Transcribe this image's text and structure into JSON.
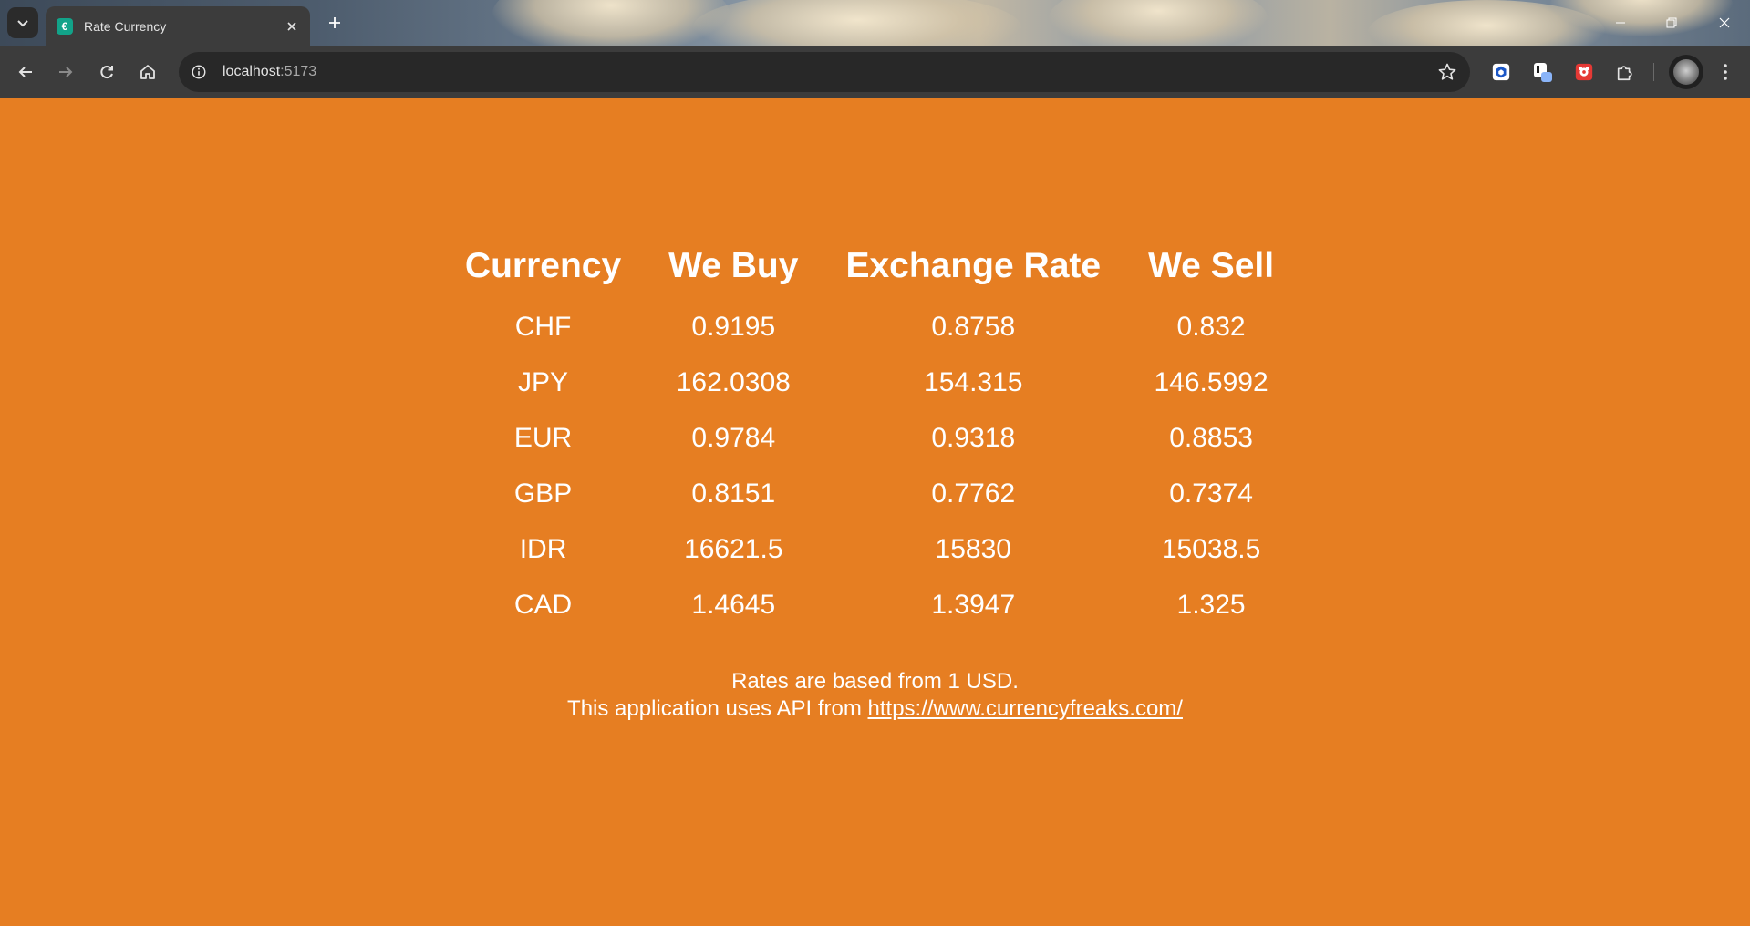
{
  "browser": {
    "tab_title": "Rate Currency",
    "url_host": "localhost",
    "url_port": ":5173"
  },
  "colors": {
    "page_background": "#e67e22",
    "text": "#ffffff",
    "favicon": "#12a389"
  },
  "icons": {
    "tab_search": "chevron-down-icon",
    "favicon": "currency-favicon-icon",
    "close_tab": "close-icon",
    "new_tab": "plus-icon",
    "back": "arrow-left-icon",
    "forward": "arrow-right-icon",
    "reload": "reload-icon",
    "home": "home-icon",
    "site_info": "info-icon",
    "bookmark": "star-icon",
    "extensions": "puzzle-icon",
    "menu": "kebab-menu-icon"
  },
  "table": {
    "headers": [
      "Currency",
      "We Buy",
      "Exchange Rate",
      "We Sell"
    ],
    "rows": [
      [
        "CHF",
        "0.9195",
        "0.8758",
        "0.832"
      ],
      [
        "JPY",
        "162.0308",
        "154.315",
        "146.5992"
      ],
      [
        "EUR",
        "0.9784",
        "0.9318",
        "0.8853"
      ],
      [
        "GBP",
        "0.8151",
        "0.7762",
        "0.7374"
      ],
      [
        "IDR",
        "16621.5",
        "15830",
        "15038.5"
      ],
      [
        "CAD",
        "1.4645",
        "1.3947",
        "1.325"
      ]
    ]
  },
  "footer": {
    "line1": "Rates are based from 1 USD.",
    "line2_prefix": "This application uses API from ",
    "link_text": "https://www.currencyfreaks.com/"
  }
}
